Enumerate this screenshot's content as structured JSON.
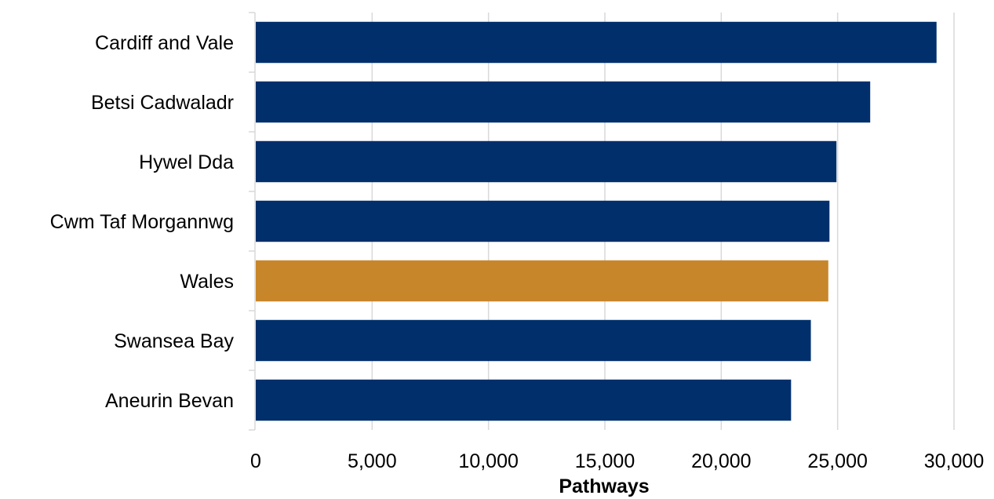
{
  "chart_data": {
    "type": "bar",
    "orientation": "horizontal",
    "title": "",
    "xlabel": "Pathways",
    "ylabel": "",
    "xlim": [
      0,
      30000
    ],
    "x_ticks": [
      0,
      5000,
      10000,
      15000,
      20000,
      25000,
      30000
    ],
    "x_tick_labels": [
      "0",
      "5,000",
      "10,000",
      "15,000",
      "20,000",
      "25,000",
      "30,000"
    ],
    "grid": true,
    "legend": "none",
    "categories": [
      "Cardiff and Vale",
      "Betsi Cadwaladr",
      "Hywel Dda",
      "Cwm Taf Morgannwg",
      "Wales",
      "Swansea Bay",
      "Aneurin Bevan"
    ],
    "values": [
      29250,
      26400,
      24950,
      24650,
      24600,
      23850,
      23000
    ],
    "bar_colors": [
      "#002f6c",
      "#002f6c",
      "#002f6c",
      "#002f6c",
      "#c8862a",
      "#002f6c",
      "#002f6c"
    ]
  }
}
